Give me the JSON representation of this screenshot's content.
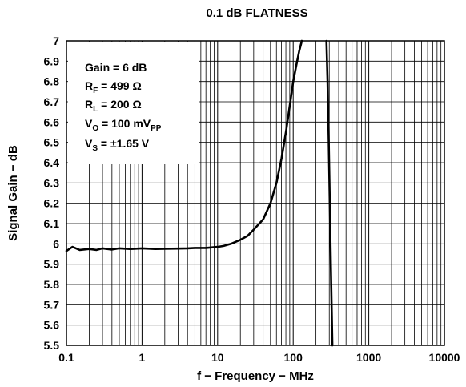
{
  "chart_data": {
    "type": "line",
    "title": "0.1 dB FLATNESS",
    "xlabel": "f − Frequency − MHz",
    "ylabel": "Signal Gain − dB",
    "xscale": "log",
    "xlim": [
      0.1,
      10000
    ],
    "ylim": [
      5.5,
      7
    ],
    "grid": true,
    "x_ticks": [
      0.1,
      1,
      10,
      100,
      1000,
      10000
    ],
    "x_tick_labels": [
      "0.1",
      "1",
      "10",
      "100",
      "1000",
      "10000"
    ],
    "y_ticks": [
      5.5,
      5.6,
      5.7,
      5.8,
      5.9,
      6,
      6.1,
      6.2,
      6.3,
      6.4,
      6.5,
      6.6,
      6.7,
      6.8,
      6.9,
      7
    ],
    "y_tick_labels": [
      "5.5",
      "5.6",
      "5.7",
      "5.8",
      "5.9",
      "6",
      "6.1",
      "6.2",
      "6.3",
      "6.4",
      "6.5",
      "6.6",
      "6.7",
      "6.8",
      "6.9",
      "7"
    ],
    "annotation": {
      "gain": "Gain = 6 dB",
      "rf": {
        "main": "R",
        "sub": "F",
        "rest": " = 499 Ω"
      },
      "rl": {
        "main": "R",
        "sub": "L",
        "rest": " = 200 Ω"
      },
      "vo": {
        "main": "V",
        "sub": "O",
        "rest": " = 100 mV",
        "sub2": "PP"
      },
      "vs": {
        "main": "V",
        "sub": "S",
        "rest": " = ±1.65 V"
      }
    },
    "series": [
      {
        "x": [
          0.1,
          0.12,
          0.15,
          0.2,
          0.25,
          0.3,
          0.4,
          0.5,
          0.7,
          1,
          1.5,
          2,
          3,
          4,
          5,
          7,
          10,
          12,
          15,
          20,
          25,
          30,
          40,
          50,
          60,
          70,
          80,
          90,
          100,
          110,
          120,
          130
        ],
        "y": [
          5.965,
          5.985,
          5.97,
          5.975,
          5.97,
          5.978,
          5.972,
          5.978,
          5.975,
          5.978,
          5.975,
          5.976,
          5.977,
          5.978,
          5.98,
          5.98,
          5.985,
          5.99,
          6.0,
          6.02,
          6.04,
          6.07,
          6.12,
          6.2,
          6.3,
          6.42,
          6.55,
          6.68,
          6.8,
          6.88,
          6.95,
          7.0
        ]
      },
      {
        "x": [
          275,
          285,
          295,
          305,
          315,
          330
        ],
        "y": [
          7.0,
          6.8,
          6.5,
          6.2,
          5.9,
          5.5
        ]
      }
    ]
  }
}
